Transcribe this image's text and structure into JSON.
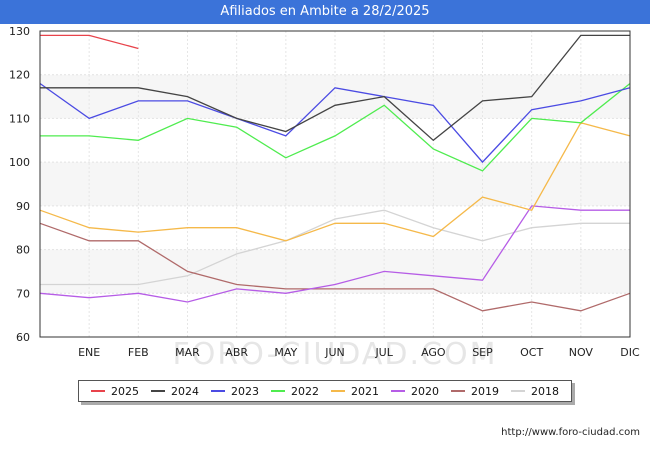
{
  "title": "Afiliados en Ambite a 28/2/2025",
  "source": "http://www.foro-ciudad.com",
  "watermark": "FORO-CIUDAD.COM",
  "chart_data": {
    "type": "line",
    "categories": [
      "",
      "ENE",
      "FEB",
      "MAR",
      "ABR",
      "MAY",
      "JUN",
      "JUL",
      "AGO",
      "SEP",
      "OCT",
      "NOV",
      "DIC"
    ],
    "ylim": [
      60,
      130
    ],
    "yticks": [
      60,
      70,
      80,
      90,
      100,
      110,
      120,
      130
    ],
    "grid": true,
    "legend_position": "bottom",
    "series": [
      {
        "name": "2025",
        "color": "#e8434b",
        "values": [
          129,
          129,
          126,
          null,
          null,
          null,
          null,
          null,
          null,
          null,
          null,
          null,
          null
        ]
      },
      {
        "name": "2024",
        "color": "#444444",
        "values": [
          117,
          117,
          117,
          115,
          110,
          107,
          113,
          115,
          105,
          114,
          115,
          129,
          129
        ]
      },
      {
        "name": "2023",
        "color": "#4b4be3",
        "values": [
          118,
          110,
          114,
          114,
          110,
          106,
          117,
          115,
          113,
          100,
          112,
          114,
          117
        ]
      },
      {
        "name": "2022",
        "color": "#4fec4f",
        "values": [
          106,
          106,
          105,
          110,
          108,
          101,
          106,
          113,
          103,
          98,
          110,
          109,
          118
        ]
      },
      {
        "name": "2021",
        "color": "#f5b94a",
        "values": [
          89,
          85,
          84,
          85,
          85,
          82,
          86,
          86,
          83,
          92,
          89,
          109,
          106
        ]
      },
      {
        "name": "2020",
        "color": "#b65de6",
        "values": [
          70,
          69,
          70,
          68,
          71,
          70,
          72,
          75,
          74,
          73,
          90,
          89,
          89
        ]
      },
      {
        "name": "2019",
        "color": "#b06a6a",
        "values": [
          86,
          82,
          82,
          75,
          72,
          71,
          71,
          71,
          71,
          66,
          68,
          66,
          70
        ]
      },
      {
        "name": "2018",
        "color": "#d4d4d4",
        "values": [
          72,
          72,
          72,
          74,
          79,
          82,
          87,
          89,
          85,
          82,
          85,
          86,
          86
        ]
      }
    ]
  }
}
